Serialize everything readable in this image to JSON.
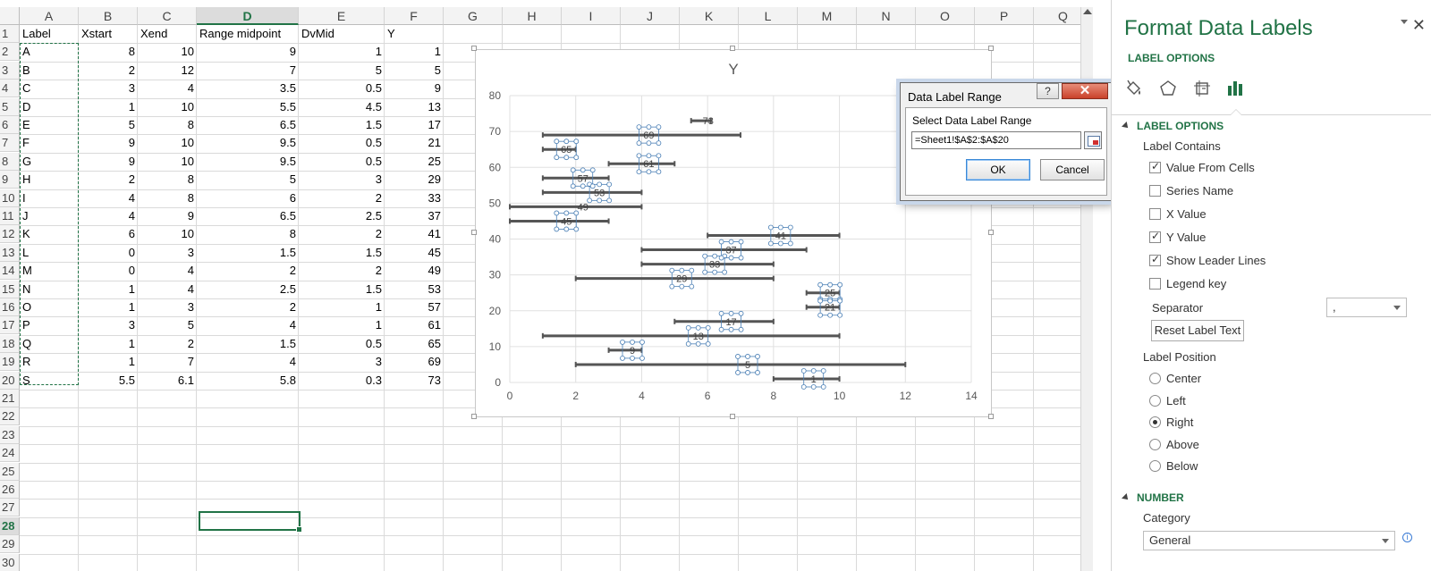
{
  "sheet": {
    "columns": [
      "A",
      "B",
      "C",
      "D",
      "E",
      "F",
      "G",
      "H",
      "I",
      "J",
      "K",
      "L",
      "M",
      "N",
      "O",
      "P",
      "Q"
    ],
    "selected_column": "D",
    "selected_row": "28",
    "rows": [
      "1",
      "2",
      "3",
      "4",
      "5",
      "6",
      "7",
      "8",
      "9",
      "10",
      "11",
      "12",
      "13",
      "14",
      "15",
      "16",
      "17",
      "18",
      "19",
      "20",
      "21",
      "22",
      "23",
      "24",
      "25",
      "26",
      "27",
      "28",
      "29",
      "30"
    ],
    "headers": [
      "Label",
      "Xstart",
      "Xend",
      "Range midpoint",
      "DvMid",
      "Y"
    ],
    "data": [
      [
        "A",
        "8",
        "10",
        "9",
        "1",
        "1"
      ],
      [
        "B",
        "2",
        "12",
        "7",
        "5",
        "5"
      ],
      [
        "C",
        "3",
        "4",
        "3.5",
        "0.5",
        "9"
      ],
      [
        "D",
        "1",
        "10",
        "5.5",
        "4.5",
        "13"
      ],
      [
        "E",
        "5",
        "8",
        "6.5",
        "1.5",
        "17"
      ],
      [
        "F",
        "9",
        "10",
        "9.5",
        "0.5",
        "21"
      ],
      [
        "G",
        "9",
        "10",
        "9.5",
        "0.5",
        "25"
      ],
      [
        "H",
        "2",
        "8",
        "5",
        "3",
        "29"
      ],
      [
        "I",
        "4",
        "8",
        "6",
        "2",
        "33"
      ],
      [
        "J",
        "4",
        "9",
        "6.5",
        "2.5",
        "37"
      ],
      [
        "K",
        "6",
        "10",
        "8",
        "2",
        "41"
      ],
      [
        "L",
        "0",
        "3",
        "1.5",
        "1.5",
        "45"
      ],
      [
        "M",
        "0",
        "4",
        "2",
        "2",
        "49"
      ],
      [
        "N",
        "1",
        "4",
        "2.5",
        "1.5",
        "53"
      ],
      [
        "O",
        "1",
        "3",
        "2",
        "1",
        "57"
      ],
      [
        "P",
        "3",
        "5",
        "4",
        "1",
        "61"
      ],
      [
        "Q",
        "1",
        "2",
        "1.5",
        "0.5",
        "65"
      ],
      [
        "R",
        "1",
        "7",
        "4",
        "3",
        "69"
      ],
      [
        "S",
        "5.5",
        "6.1",
        "5.8",
        "0.3",
        "73"
      ]
    ]
  },
  "chart_data": {
    "type": "scatter",
    "title": "Y",
    "xlim": [
      0,
      14
    ],
    "ylim": [
      0,
      80
    ],
    "x_ticks": [
      "0",
      "2",
      "4",
      "6",
      "8",
      "10",
      "12",
      "14"
    ],
    "y_ticks": [
      "0",
      "10",
      "20",
      "30",
      "40",
      "50",
      "60",
      "70",
      "80"
    ],
    "grid": true,
    "series": [
      {
        "x": [
          9,
          7,
          3.5,
          5.5,
          6.5,
          9.5,
          9.5,
          5,
          6,
          6.5,
          8,
          1.5,
          2,
          2.5,
          2,
          4,
          1.5,
          4,
          5.8
        ],
        "y": [
          1,
          5,
          9,
          13,
          17,
          21,
          25,
          29,
          33,
          37,
          41,
          45,
          49,
          53,
          57,
          61,
          65,
          69,
          73
        ],
        "x_error": [
          1,
          5,
          0.5,
          4.5,
          1.5,
          0.5,
          0.5,
          3,
          2,
          2.5,
          2,
          1.5,
          2,
          1.5,
          1,
          1,
          0.5,
          3,
          0.3
        ],
        "labels": [
          "1",
          "5",
          "9",
          "13",
          "17",
          "21",
          "25",
          "29",
          "33",
          "37",
          "41",
          "45",
          "49",
          "53",
          "57",
          "61",
          "65",
          "69",
          "73"
        ]
      }
    ]
  },
  "dialog": {
    "title": "Data Label Range",
    "help": "?",
    "close": "✕",
    "label": "Select Data Label Range",
    "range_value": "=Sheet1!$A$2:$A$20",
    "ok": "OK",
    "cancel": "Cancel"
  },
  "pane": {
    "title": "Format Data Labels",
    "close": "✕",
    "tab_label": "LABEL OPTIONS",
    "section_label_options": "LABEL OPTIONS",
    "label_contains": "Label Contains",
    "checkboxes": [
      {
        "label": "Value From Cells",
        "checked": true
      },
      {
        "label": "Series Name",
        "checked": false
      },
      {
        "label": "X Value",
        "checked": false
      },
      {
        "label": "Y Value",
        "checked": true
      },
      {
        "label": "Show Leader Lines",
        "checked": true
      },
      {
        "label": "Legend key",
        "checked": false
      }
    ],
    "separator_label": "Separator",
    "separator_value": ",",
    "reset_button": "Reset Label Text",
    "label_position": "Label Position",
    "positions": [
      {
        "label": "Center",
        "selected": false
      },
      {
        "label": "Left",
        "selected": false
      },
      {
        "label": "Right",
        "selected": true
      },
      {
        "label": "Above",
        "selected": false
      },
      {
        "label": "Below",
        "selected": false
      }
    ],
    "section_number": "NUMBER",
    "category_label": "Category",
    "category_value": "General",
    "info": "i"
  },
  "colors": {
    "accent": "#217346",
    "bar": "#555555",
    "label_box": "#4a7fb5"
  }
}
